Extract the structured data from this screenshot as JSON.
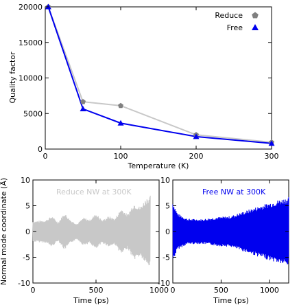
{
  "chart_data": [
    {
      "type": "line",
      "xlabel": "Temperature (K)",
      "ylabel": "Quality factor",
      "xlim": [
        0,
        300
      ],
      "ylim": [
        0,
        20000
      ],
      "xticks": [
        0,
        100,
        200,
        300
      ],
      "yticks": [
        0,
        5000,
        10000,
        15000,
        20000
      ],
      "legend_position": "top-right",
      "series": [
        {
          "name": "Reduce",
          "marker": "pentagon",
          "color": "#c8c8c8",
          "marker_color": "#808080",
          "x": [
            4,
            50,
            100,
            200,
            300
          ],
          "y": [
            20000,
            6650,
            6100,
            2000,
            950
          ]
        },
        {
          "name": "Free",
          "marker": "triangle",
          "color": "#0000ee",
          "marker_color": "#0000ee",
          "x": [
            4,
            50,
            100,
            200,
            300
          ],
          "y": [
            20000,
            5650,
            3650,
            1750,
            800
          ]
        }
      ]
    },
    {
      "type": "line",
      "annotation": "Reduce NW at 300K",
      "xlabel": "Time (ps)",
      "ylabel": "Normal mode coordinate (Å)",
      "xlim": [
        0,
        1000
      ],
      "ylim": [
        -10,
        10
      ],
      "xticks": [
        0,
        500,
        1000
      ],
      "yticks": [
        -10,
        -5,
        0,
        5,
        10
      ],
      "color": "#c8c8c8",
      "signal_x_end": 930,
      "envelope": {
        "x": [
          0,
          100,
          150,
          200,
          250,
          300,
          350,
          400,
          450,
          500,
          550,
          600,
          650,
          700,
          750,
          800,
          850,
          900,
          930
        ],
        "y": [
          2,
          2.2,
          3,
          1.8,
          3.6,
          2.2,
          1.5,
          2.7,
          2.3,
          3.5,
          2.2,
          3,
          2.5,
          4.5,
          3.3,
          5.5,
          4.8,
          6.5,
          7
        ]
      }
    },
    {
      "type": "line",
      "annotation": "Free NW at 300K",
      "xlabel": "Time (ps)",
      "ylabel": "",
      "xlim": [
        0,
        1200
      ],
      "ylim": [
        -10,
        10
      ],
      "xticks": [
        0,
        500,
        1000
      ],
      "yticks": [
        -10,
        -5,
        0,
        5,
        10
      ],
      "color": "#0000ee",
      "signal_x_end": 1200,
      "envelope": {
        "x": [
          0,
          50,
          150,
          300,
          450,
          600,
          750,
          900,
          1000,
          1100,
          1200
        ],
        "y": [
          5.8,
          3.5,
          2.5,
          2.4,
          2.8,
          3,
          4,
          5,
          5.6,
          6.2,
          6.7
        ]
      }
    }
  ]
}
